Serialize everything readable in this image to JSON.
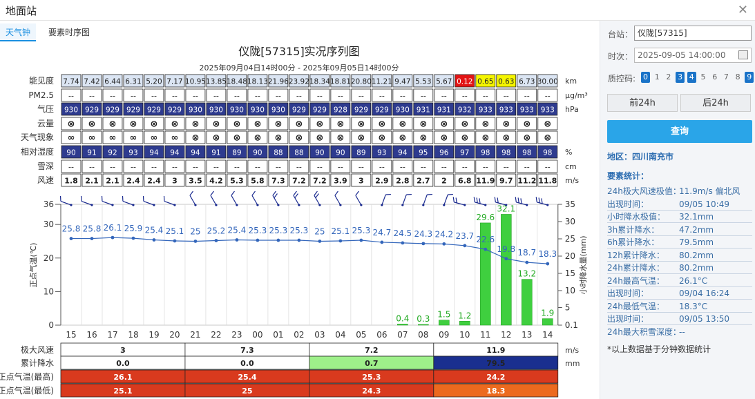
{
  "window": {
    "title": "地面站"
  },
  "tabs": [
    {
      "label": "天气钟",
      "active": true
    },
    {
      "label": "要素时序图",
      "active": false
    }
  ],
  "chart_data": {
    "type": "table",
    "title": "仪陇[57315]实况序列图",
    "subtitle": "2025年09月04日14时00分 - 2025年09月05日14时00分",
    "hours": [
      "15",
      "16",
      "17",
      "18",
      "19",
      "20",
      "21",
      "22",
      "23",
      "00",
      "01",
      "02",
      "03",
      "04",
      "05",
      "06",
      "07",
      "08",
      "09",
      "10",
      "11",
      "12",
      "13",
      "14"
    ],
    "rows": [
      {
        "label": "能见度",
        "unit": "km",
        "values": [
          "7.74",
          "7.42",
          "6.44",
          "6.31",
          "5.20",
          "7.17",
          "10.95",
          "13.85",
          "18.48",
          "18.13",
          "21.96",
          "23.92",
          "18.34",
          "18.81",
          "20.80",
          "11.21",
          "9.47",
          "5.53",
          "5.67",
          "0.12",
          "0.65",
          "0.63",
          "6.73",
          "30.00"
        ]
      },
      {
        "label": "PM2.5",
        "unit": "μg/m³",
        "values": [
          "--",
          "--",
          "--",
          "--",
          "--",
          "--",
          "--",
          "--",
          "--",
          "--",
          "--",
          "--",
          "--",
          "--",
          "--",
          "--",
          "--",
          "--",
          "--",
          "--",
          "--",
          "--",
          "--",
          "--"
        ]
      },
      {
        "label": "气压",
        "unit": "hPa",
        "values": [
          "930",
          "929",
          "929",
          "929",
          "929",
          "929",
          "930",
          "930",
          "930",
          "930",
          "930",
          "929",
          "929",
          "928",
          "929",
          "929",
          "930",
          "931",
          "931",
          "932",
          "933",
          "933",
          "933",
          "933"
        ]
      },
      {
        "label": "云量",
        "unit": "",
        "values": [
          "⊗",
          "⊗",
          "⊗",
          "⊗",
          "⊗",
          "⊗",
          "⊗",
          "⊗",
          "⊗",
          "⊗",
          "⊗",
          "⊗",
          "⊗",
          "⊗",
          "⊗",
          "⊗",
          "⊗",
          "⊗",
          "⊗",
          "⊗",
          "⊗",
          "⊗",
          "⊗",
          "⊗"
        ]
      },
      {
        "label": "天气现象",
        "unit": "",
        "values": [
          "∞",
          "∞",
          "∞",
          "∞",
          "∞",
          "∞",
          "⊗",
          "⊗",
          "⊗",
          "⊗",
          "⊗",
          "⊗",
          "⊗",
          "⊗",
          "⊗",
          "⊗",
          "⊗",
          "⊗",
          "⊗",
          "⊗",
          "⊗",
          "⊗",
          "⊗",
          "⊗"
        ]
      },
      {
        "label": "相对湿度",
        "unit": "%",
        "values": [
          "90",
          "91",
          "92",
          "93",
          "94",
          "94",
          "94",
          "91",
          "89",
          "90",
          "88",
          "88",
          "90",
          "90",
          "89",
          "93",
          "94",
          "95",
          "96",
          "97",
          "98",
          "98",
          "98",
          "98"
        ]
      },
      {
        "label": "雪深",
        "unit": "cm",
        "values": [
          "--",
          "--",
          "--",
          "--",
          "--",
          "--",
          "--",
          "--",
          "--",
          "--",
          "--",
          "--",
          "--",
          "--",
          "--",
          "--",
          "--",
          "--",
          "--",
          "--",
          "--",
          "--",
          "--",
          "--"
        ]
      },
      {
        "label": "风速",
        "unit": "m/s",
        "values": [
          "1.8",
          "2.1",
          "2.1",
          "2.4",
          "2.4",
          "3",
          "3.5",
          "4.2",
          "5.3",
          "5.8",
          "7.3",
          "7.2",
          "7.2",
          "3.9",
          "3",
          "2.9",
          "2.8",
          "2.7",
          "2",
          "6.8",
          "11.9",
          "9.7",
          "11.2",
          "11.8"
        ]
      }
    ],
    "temperature": {
      "ylabel": "正点气温(℃)",
      "ylim": [
        0,
        36
      ],
      "ticks": [
        0,
        10,
        20,
        30,
        36
      ],
      "values": [
        25.8,
        25.8,
        26.1,
        25.9,
        25.4,
        25.1,
        25,
        25.2,
        25.4,
        25.3,
        25.3,
        25.3,
        25,
        25.1,
        25.3,
        24.7,
        24.5,
        24.3,
        24.2,
        23.7,
        22.6,
        19.8,
        18.7,
        18.3
      ]
    },
    "precipitation": {
      "ylabel": "小时降水量(mm)",
      "ticks": [
        "0.1",
        "5",
        "10",
        "15",
        "20",
        "25",
        "30",
        "35"
      ],
      "values": [
        0,
        0,
        0,
        0,
        0,
        0,
        0,
        0,
        0,
        0,
        0,
        0,
        0,
        0,
        0,
        0,
        0.4,
        0.3,
        1.5,
        1.2,
        29.6,
        32.1,
        13.2,
        1.9
      ]
    },
    "summary": {
      "unit_labels": [
        "m/s",
        "mm"
      ],
      "rows": [
        {
          "label": "极大风速",
          "values": [
            "3",
            "7.3",
            "7.2",
            "11.9"
          ]
        },
        {
          "label": "累计降水",
          "values": [
            "0.0",
            "0.0",
            "0.7",
            "79.5"
          ]
        },
        {
          "label": "正点气温(最高)",
          "values": [
            "26.1",
            "25.4",
            "25.3",
            "24.2"
          ]
        },
        {
          "label": "正点气温(最低)",
          "values": [
            "25.1",
            "25",
            "24.3",
            "18.3"
          ]
        }
      ]
    }
  },
  "side": {
    "station_label": "台站：",
    "station_value": "仪陇[57315]",
    "time_label": "时次：",
    "time_value": "2025-09-05 14:00:00",
    "qc_label": "质控码:",
    "qc_codes": [
      "0",
      "1",
      "2",
      "3",
      "4",
      "5",
      "6",
      "7",
      "8",
      "9"
    ],
    "qc_selected": [
      "0",
      "3",
      "4",
      "9"
    ],
    "prev_btn": "前24h",
    "next_btn": "后24h",
    "query_btn": "查询",
    "region": "地区：四川南充市",
    "stats_title": "要素统计：",
    "stats": [
      {
        "k": "24h极大风速极值：",
        "v": "11.9m/s 偏北风"
      },
      {
        "k": "出现时间：",
        "v": "09/05 10:49"
      },
      {
        "k": "小时降水极值：",
        "v": "32.1mm"
      },
      {
        "k": "3h累计降水：",
        "v": "47.2mm"
      },
      {
        "k": "6h累计降水：",
        "v": "79.5mm"
      },
      {
        "k": "12h累计降水：",
        "v": "80.2mm"
      },
      {
        "k": "24h累计降水：",
        "v": "80.2mm"
      },
      {
        "k": "24h最高气温：",
        "v": "26.1°C"
      },
      {
        "k": "出现时间：",
        "v": "09/04 16:24"
      },
      {
        "k": "24h最低气温：",
        "v": "18.3°C"
      },
      {
        "k": "出现时间：",
        "v": "09/05 13:50"
      },
      {
        "k": "24h最大积雪深度：",
        "v": "--"
      }
    ],
    "note": "*以上数据基于分钟数据统计"
  },
  "colors": {
    "accent": "#1a8fe0",
    "pressure_cell": "#2e3b8f",
    "precip_bar": "#3fcf3f",
    "temp_line": "#3366bb"
  }
}
